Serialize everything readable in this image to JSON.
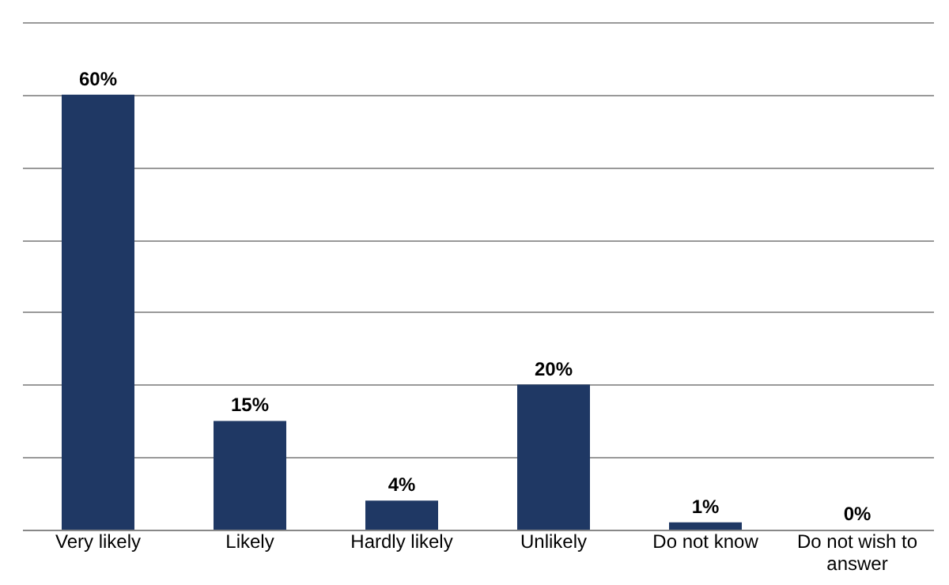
{
  "chart_data": {
    "type": "bar",
    "categories": [
      "Very likely",
      "Likely",
      "Hardly likely",
      "Unlikely",
      "Do not know",
      "Do not wish to answer"
    ],
    "values": [
      60,
      15,
      4,
      20,
      1,
      0
    ],
    "value_labels": [
      "60%",
      "15%",
      "4%",
      "20%",
      "1%",
      "0%"
    ],
    "color": "#1f3864",
    "ylim": [
      0,
      70
    ],
    "yticks": [
      {
        "value": 0,
        "label": null
      },
      {
        "value": 10,
        "label": null
      },
      {
        "value": 20,
        "label": null
      },
      {
        "value": 30,
        "label": null
      },
      {
        "value": 40,
        "label": null
      },
      {
        "value": 50,
        "label": null
      },
      {
        "value": 60,
        "label": null
      },
      {
        "value": 70,
        "label": null
      }
    ],
    "grid": "y"
  }
}
